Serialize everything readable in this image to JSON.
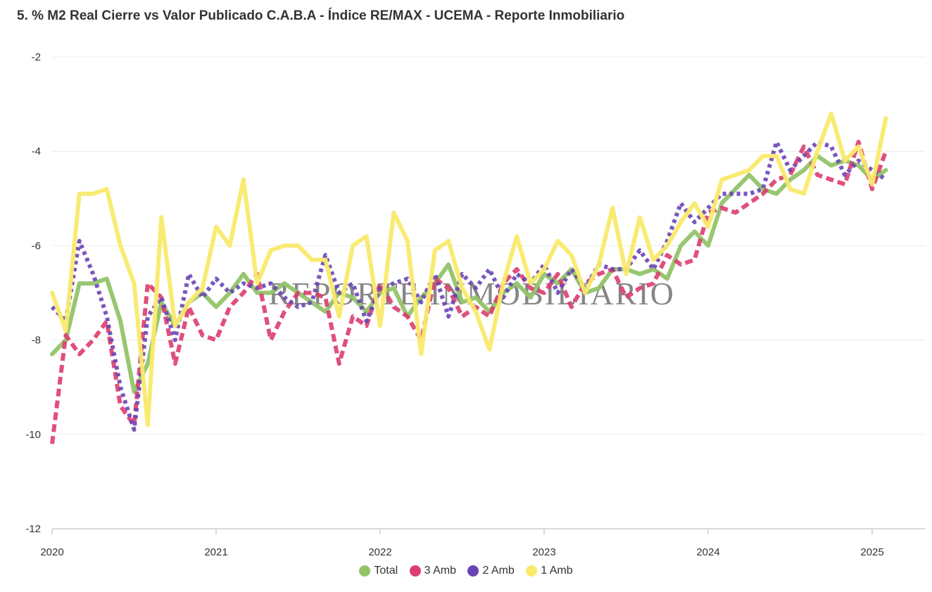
{
  "title": "5. % M2 Real Cierre vs Valor Publicado C.A.B.A - Índice RE/MAX - UCEMA - Reporte Inmobiliario",
  "watermark": "REPORTE INMOBILIARIO",
  "colors": {
    "total": "#92c369",
    "amb3": "#dc3d6e",
    "amb2": "#6a44b5",
    "amb1": "#f9ea6a"
  },
  "chart_data": {
    "type": "line",
    "title": "5. % M2 Real Cierre vs Valor Publicado C.A.B.A - Índice RE/MAX - UCEMA - Reporte Inmobiliario",
    "xlabel": "",
    "ylabel": "",
    "xlim": [
      2020.0,
      2025.37
    ],
    "ylim": [
      -12,
      -2
    ],
    "y_ticks": [
      -2,
      -4,
      -6,
      -8,
      -10,
      -12
    ],
    "x_ticks": [
      2020,
      2021,
      2022,
      2023,
      2024,
      2025
    ],
    "grid": true,
    "legend_position": "bottom",
    "x_start_year": 2020,
    "x_step_months": 1,
    "series": [
      {
        "name": "Total",
        "key": "total",
        "style": "solid",
        "values": [
          -8.3,
          -8.0,
          -6.8,
          -6.8,
          -6.7,
          -7.6,
          -9.1,
          -8.5,
          -7.2,
          -7.7,
          -7.2,
          -7.0,
          -7.3,
          -7.0,
          -6.6,
          -7.0,
          -7.0,
          -6.8,
          -7.0,
          -7.2,
          -7.4,
          -7.0,
          -7.1,
          -7.4,
          -7.0,
          -6.9,
          -7.5,
          -7.1,
          -6.8,
          -6.4,
          -7.2,
          -7.1,
          -7.4,
          -7.0,
          -6.8,
          -7.1,
          -6.6,
          -6.8,
          -6.5,
          -7.0,
          -6.9,
          -6.5,
          -6.5,
          -6.6,
          -6.5,
          -6.7,
          -6.0,
          -5.7,
          -6.0,
          -5.1,
          -4.8,
          -4.5,
          -4.8,
          -4.9,
          -4.6,
          -4.4,
          -4.1,
          -4.3,
          -4.2,
          -4.3,
          -4.6,
          -4.4
        ]
      },
      {
        "name": "3 Amb",
        "key": "amb3",
        "style": "dashed",
        "values": [
          -10.2,
          -7.9,
          -8.3,
          -8.0,
          -7.6,
          -9.4,
          -9.8,
          -6.8,
          -7.1,
          -8.5,
          -7.3,
          -7.9,
          -8.0,
          -7.3,
          -7.0,
          -6.6,
          -8.0,
          -7.4,
          -7.0,
          -7.0,
          -7.1,
          -8.5,
          -7.5,
          -7.7,
          -6.8,
          -7.3,
          -7.5,
          -8.0,
          -6.7,
          -6.9,
          -7.5,
          -7.3,
          -7.5,
          -6.8,
          -6.5,
          -6.9,
          -7.0,
          -6.6,
          -7.3,
          -6.8,
          -6.6,
          -6.5,
          -7.1,
          -6.9,
          -6.8,
          -6.2,
          -6.4,
          -6.3,
          -5.3,
          -5.2,
          -5.3,
          -5.1,
          -4.9,
          -4.6,
          -4.5,
          -3.9,
          -4.5,
          -4.6,
          -4.7,
          -3.8,
          -4.8,
          -4.0
        ]
      },
      {
        "name": "2 Amb",
        "key": "amb2",
        "style": "dotted",
        "values": [
          -7.3,
          -7.6,
          -5.9,
          -6.6,
          -7.5,
          -9.0,
          -9.9,
          -7.5,
          -7.1,
          -8.0,
          -6.6,
          -7.1,
          -6.7,
          -7.0,
          -6.8,
          -6.9,
          -6.8,
          -7.1,
          -7.3,
          -7.2,
          -6.2,
          -7.0,
          -6.8,
          -7.6,
          -6.9,
          -6.8,
          -6.7,
          -7.2,
          -6.6,
          -7.5,
          -6.6,
          -6.9,
          -6.5,
          -7.1,
          -6.6,
          -6.8,
          -6.4,
          -7.0,
          -6.5,
          -6.9,
          -6.4,
          -6.5,
          -6.5,
          -6.1,
          -6.5,
          -5.9,
          -5.1,
          -5.5,
          -5.2,
          -4.9,
          -4.9,
          -4.9,
          -4.8,
          -3.8,
          -4.4,
          -4.1,
          -3.8,
          -3.9,
          -4.5,
          -4.2,
          -4.4,
          -4.6
        ]
      },
      {
        "name": "1 Amb",
        "key": "amb1",
        "style": "solid",
        "values": [
          -7.0,
          -7.8,
          -4.9,
          -4.9,
          -4.8,
          -6.0,
          -6.8,
          -9.8,
          -5.4,
          -7.7,
          -7.2,
          -6.9,
          -5.6,
          -6.0,
          -4.6,
          -6.8,
          -6.1,
          -6.0,
          -6.0,
          -6.3,
          -6.3,
          -7.5,
          -6.0,
          -5.8,
          -7.7,
          -5.3,
          -5.9,
          -8.3,
          -6.1,
          -5.9,
          -6.9,
          -7.4,
          -8.2,
          -6.8,
          -5.8,
          -6.8,
          -6.5,
          -5.9,
          -6.2,
          -7.0,
          -6.4,
          -5.2,
          -6.6,
          -5.4,
          -6.3,
          -6.0,
          -5.5,
          -5.1,
          -5.6,
          -4.6,
          -4.5,
          -4.4,
          -4.1,
          -4.1,
          -4.8,
          -4.9,
          -4.0,
          -3.2,
          -4.2,
          -3.9,
          -4.7,
          -3.3
        ]
      }
    ]
  }
}
